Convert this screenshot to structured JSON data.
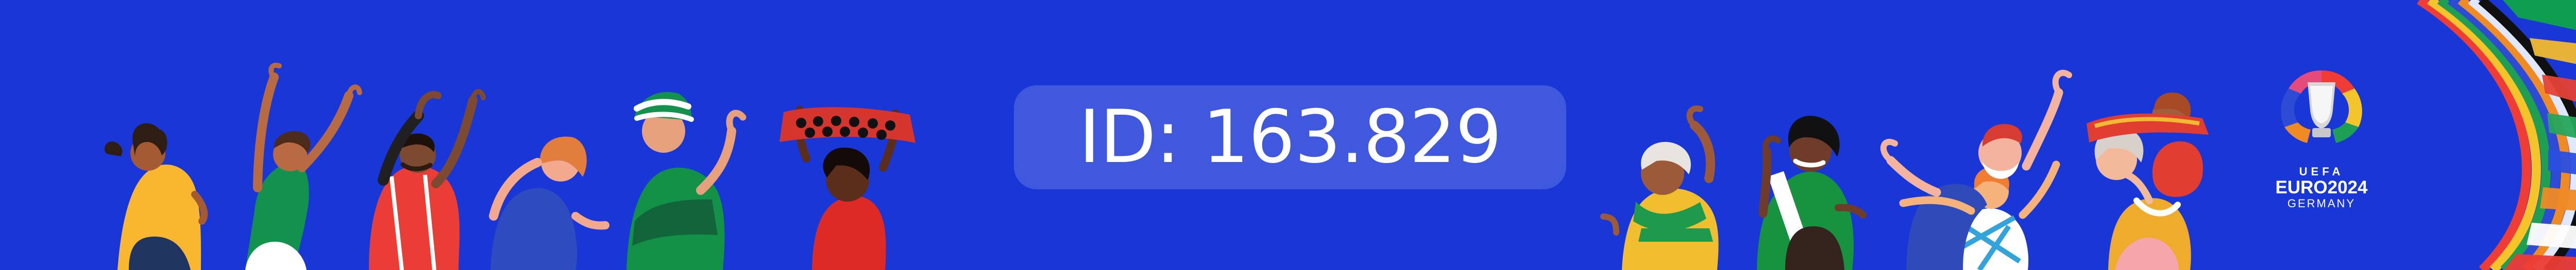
{
  "badge": {
    "text": "ID: 163.829"
  },
  "logo": {
    "uefa": "UEFA",
    "euro": "EURO2024",
    "country": "GERMANY"
  },
  "colors": {
    "background": "#1937d7",
    "badge_fill": "rgba(255,255,255,0.17)",
    "text": "#ffffff"
  },
  "icons": {
    "left": "cheering-fans-illustration",
    "right": "cheering-fans-illustration",
    "logo": "euro-2024-trophy-logo"
  }
}
